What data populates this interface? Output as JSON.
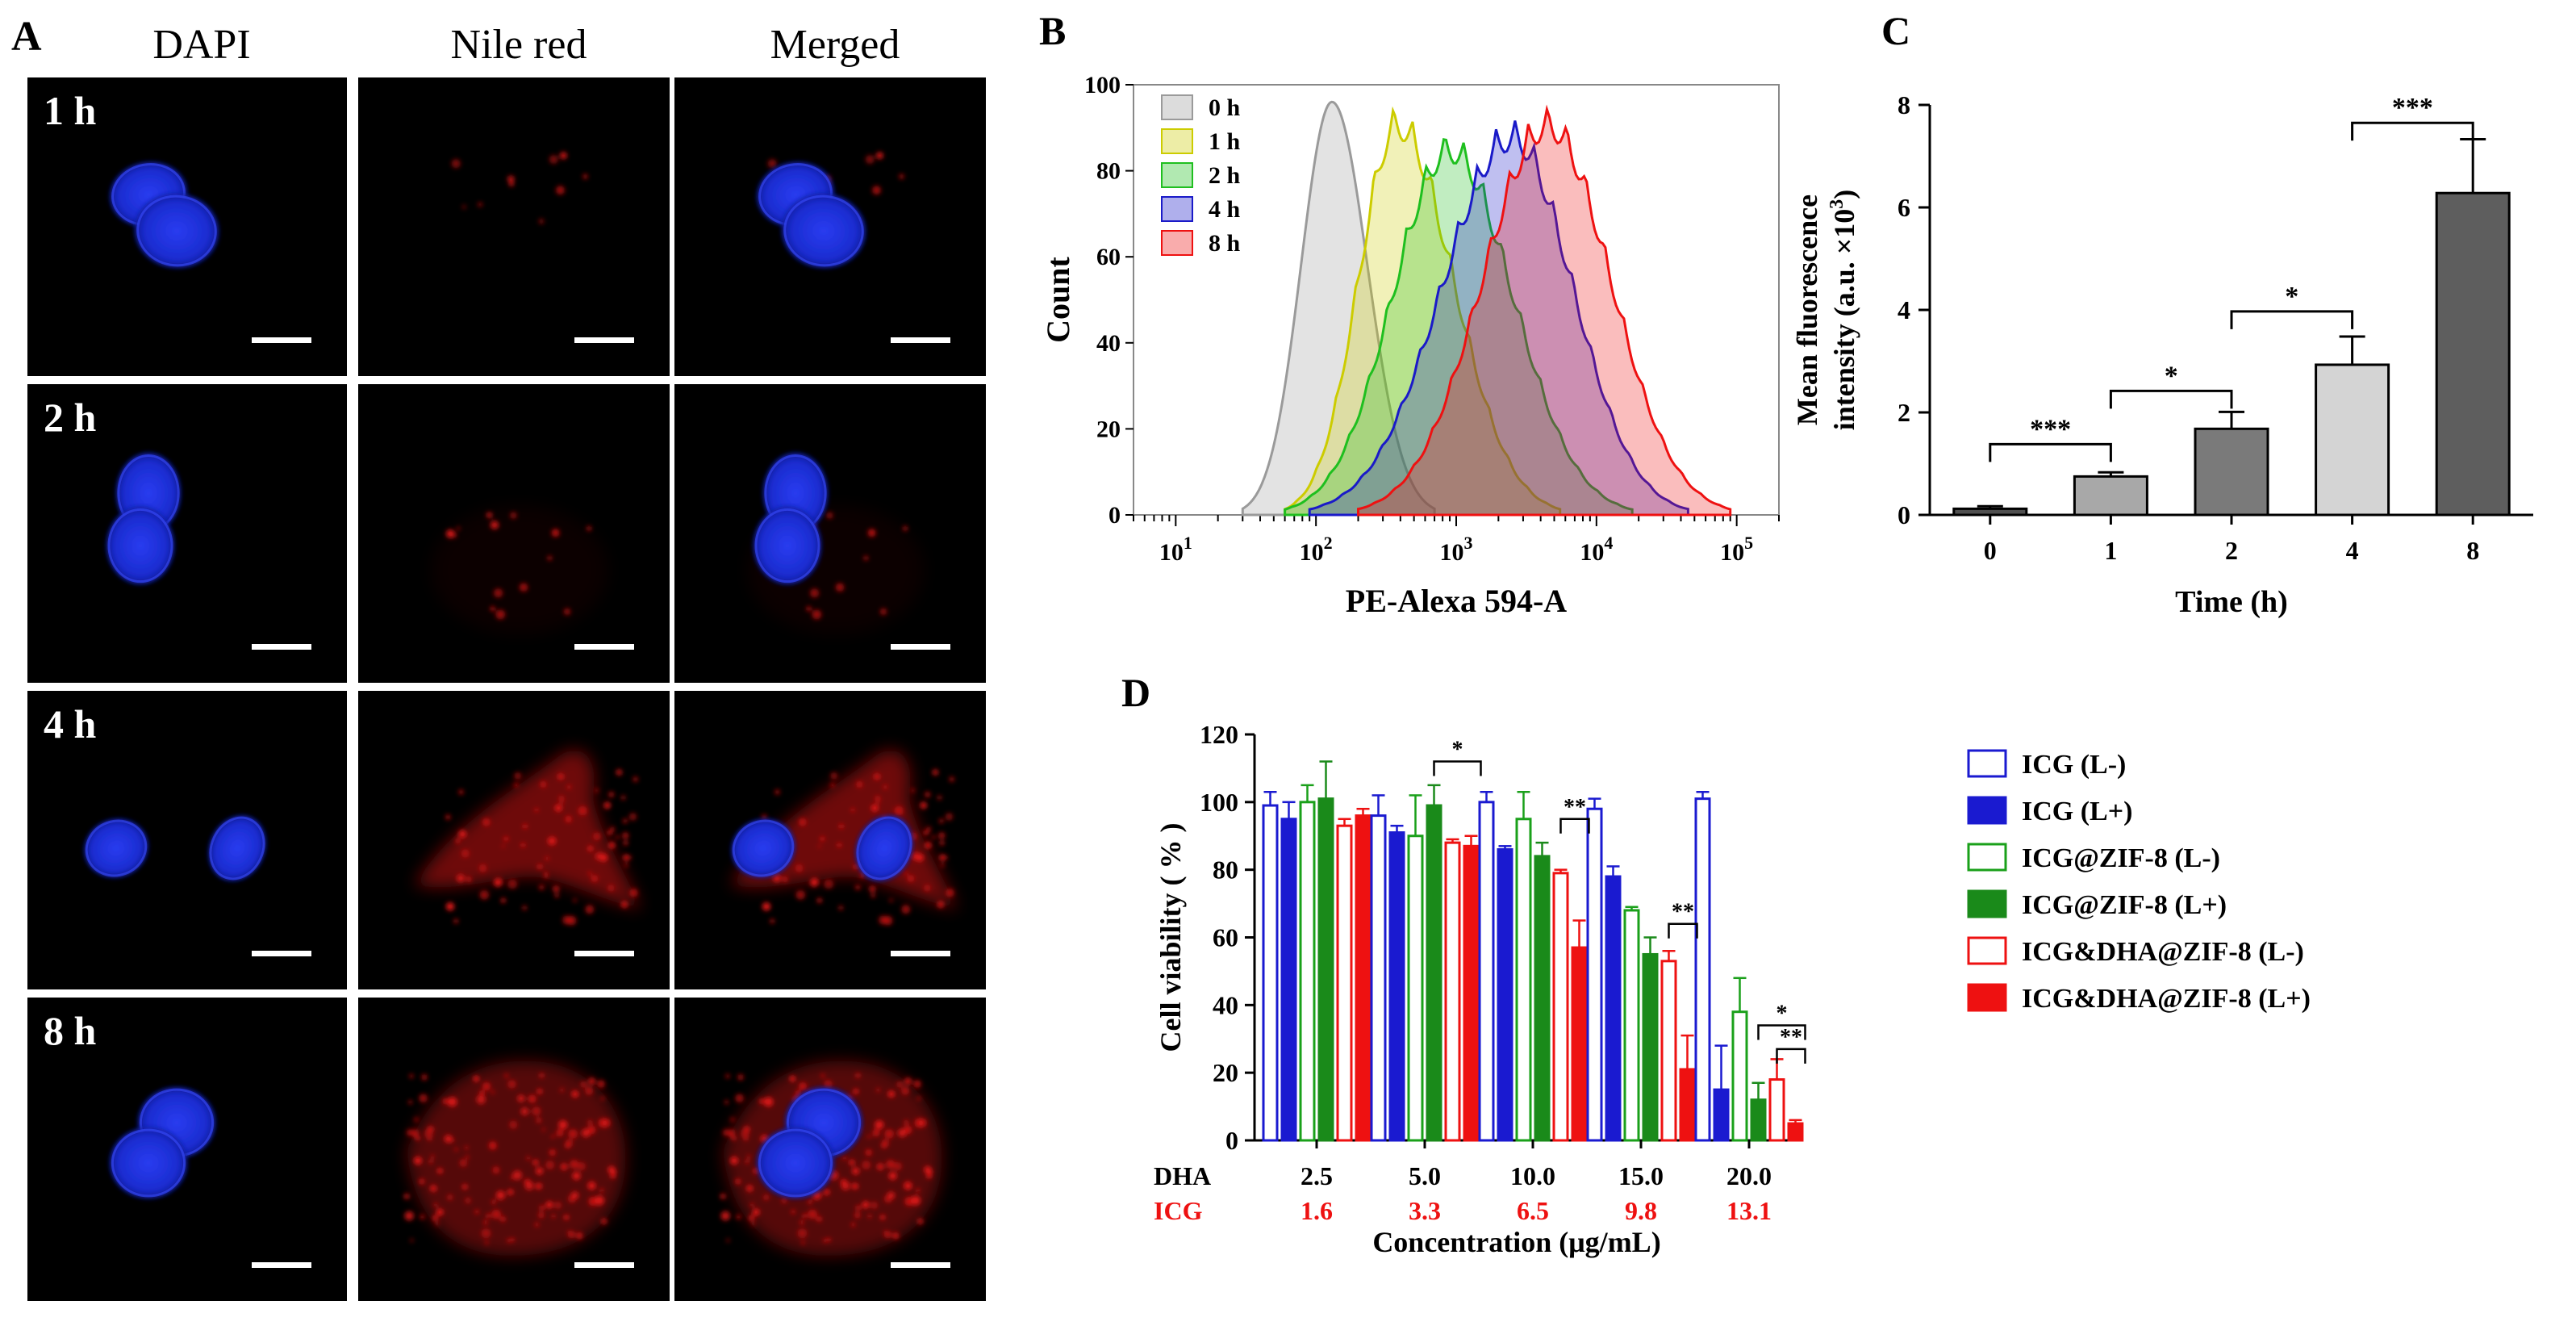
{
  "colors": {
    "dapi": "#1a2fd8",
    "nile_red": "#d81414",
    "scalebar": "#ffffff",
    "flow_0h": "#9a9a9a",
    "flow_1h": "#cccc00",
    "flow_2h": "#1fbf1f",
    "flow_4h": "#1a1ac8",
    "flow_8h": "#ee1111",
    "c_bar_0": "#505050",
    "c_bar_1": "#a8a8a8",
    "c_bar_2": "#7a7a7a",
    "c_bar_4": "#d4d4d4",
    "c_bar_8": "#5e5e5e",
    "d_blue": "#1a1ad0",
    "d_green": "#1aa01a",
    "d_red": "#ee1111",
    "d_dark_green": "#1a8a1a"
  },
  "panel_a": {
    "label": "A",
    "columns": [
      "DAPI",
      "Nile red",
      "Merged"
    ],
    "rows": [
      "1 h",
      "2 h",
      "4 h",
      "8 h"
    ]
  },
  "chart_data": [
    {
      "panel": "B",
      "type": "area",
      "title": "",
      "xlabel": "PE-Alexa 594-A",
      "ylabel": "Count",
      "xscale": "log",
      "xlim": [
        5,
        200000
      ],
      "ylim": [
        0,
        100
      ],
      "x_ticks": [
        {
          "v": 10,
          "base": "10",
          "exp": "1"
        },
        {
          "v": 100,
          "base": "10",
          "exp": "2"
        },
        {
          "v": 1000,
          "base": "10",
          "exp": "3"
        },
        {
          "v": 10000,
          "base": "10",
          "exp": "4"
        },
        {
          "v": 100000,
          "base": "10",
          "exp": "5"
        }
      ],
      "y_ticks": [
        "0",
        "20",
        "40",
        "60",
        "80",
        "100"
      ],
      "legend": [
        "0 h",
        "1 h",
        "2 h",
        "4 h",
        "8 h"
      ],
      "series": [
        {
          "name": "0 h",
          "peak_x": 130,
          "peak_y": 96,
          "left_x": 30,
          "right_x": 700
        },
        {
          "name": "1 h",
          "peak_x": 380,
          "peak_y": 95,
          "left_x": 60,
          "right_x": 5500
        },
        {
          "name": "2 h",
          "peak_x": 900,
          "peak_y": 89,
          "left_x": 60,
          "right_x": 18000
        },
        {
          "name": "4 h",
          "peak_x": 2500,
          "peak_y": 92,
          "left_x": 90,
          "right_x": 45000
        },
        {
          "name": "8 h",
          "peak_x": 4500,
          "peak_y": 95,
          "left_x": 200,
          "right_x": 90000
        }
      ]
    },
    {
      "panel": "C",
      "type": "bar",
      "title": "",
      "xlabel": "Time (h)",
      "ylabel_line1": "Mean fluorescence",
      "ylabel_line2": "intensity (a.u. ×10",
      "ylabel_sup": "3",
      "ylabel_end": ")",
      "ylim": [
        0,
        8
      ],
      "y_ticks": [
        "0",
        "2",
        "4",
        "6",
        "8"
      ],
      "categories": [
        "0",
        "1",
        "2",
        "4",
        "8"
      ],
      "values": [
        0.12,
        0.75,
        1.68,
        2.93,
        6.28
      ],
      "errors": [
        0.05,
        0.08,
        0.33,
        0.55,
        1.05
      ],
      "significance": [
        {
          "from": 0,
          "to": 1,
          "y": 1.38,
          "label": "***"
        },
        {
          "from": 1,
          "to": 2,
          "y": 2.42,
          "label": "*"
        },
        {
          "from": 2,
          "to": 3,
          "y": 3.97,
          "label": "*"
        },
        {
          "from": 3,
          "to": 4,
          "y": 7.65,
          "label": "***"
        }
      ]
    },
    {
      "panel": "D",
      "type": "bar",
      "title": "",
      "xlabel": "Concentration (μg/mL)",
      "ylabel": "Cell viability ( % )",
      "ylim": [
        0,
        120
      ],
      "y_ticks": [
        "0",
        "20",
        "40",
        "60",
        "80",
        "100",
        "120"
      ],
      "row_labels": {
        "dha": "DHA",
        "icg": "ICG"
      },
      "categories_dha": [
        "2.5",
        "5.0",
        "10.0",
        "15.0",
        "20.0"
      ],
      "categories_icg": [
        "1.6",
        "3.3",
        "6.5",
        "9.8",
        "13.1"
      ],
      "series": [
        {
          "name": "ICG (L-)",
          "style": "open",
          "values": [
            99,
            96,
            100,
            98,
            101
          ],
          "errors": [
            4,
            6,
            3,
            3,
            2
          ]
        },
        {
          "name": "ICG (L+)",
          "style": "filled",
          "values": [
            95,
            91,
            86,
            78,
            15
          ],
          "errors": [
            5,
            2,
            1,
            3,
            13
          ]
        },
        {
          "name": "ICG@ZIF-8 (L-)",
          "style": "open",
          "values": [
            100,
            90,
            95,
            68,
            38
          ],
          "errors": [
            5,
            12,
            8,
            1,
            10
          ]
        },
        {
          "name": "ICG@ZIF-8 (L+)",
          "style": "filled",
          "values": [
            101,
            99,
            84,
            55,
            12
          ],
          "errors": [
            11,
            6,
            4,
            5,
            5
          ]
        },
        {
          "name": "ICG&DHA@ZIF-8 (L-)",
          "style": "open",
          "values": [
            93,
            88,
            79,
            53,
            18
          ],
          "errors": [
            2,
            1,
            1,
            3,
            6
          ]
        },
        {
          "name": "ICG&DHA@ZIF-8 (L+)",
          "style": "filled",
          "values": [
            96,
            87,
            57,
            21,
            5
          ],
          "errors": [
            2,
            3,
            8,
            10,
            1
          ]
        }
      ],
      "significance": [
        {
          "group": 1,
          "from": 3,
          "to": 5,
          "y": 112,
          "label": "*"
        },
        {
          "group": 2,
          "from": 4,
          "to": 5,
          "y": 95,
          "label": "**"
        },
        {
          "group": 3,
          "from": 4,
          "to": 5,
          "y": 64,
          "label": "**"
        },
        {
          "group": 4,
          "from": 3,
          "to": 5,
          "y": 34,
          "label": "*"
        },
        {
          "group": 4,
          "from": 4,
          "to": 5,
          "y": 27,
          "label": "**"
        }
      ]
    }
  ],
  "labels": {
    "b": "B",
    "c": "C",
    "d": "D"
  }
}
